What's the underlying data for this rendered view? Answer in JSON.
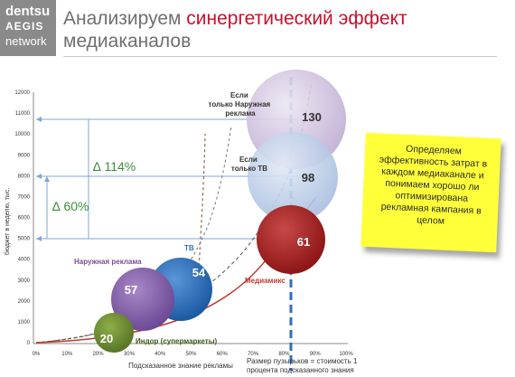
{
  "logo": {
    "line1": "dentsu",
    "line2": "AEGIS",
    "line3": "network"
  },
  "title": {
    "part1": "Анализируем ",
    "highlight": "синергетический эффект",
    "line2": "медиаканалов"
  },
  "axes": {
    "ylabel": "бюджет в неделю, тыс.",
    "xlabel": "Подсказанное знание рекламы",
    "yticks": [
      "0",
      "1000",
      "2000",
      "3000",
      "4000",
      "5000",
      "6000",
      "7000",
      "8000",
      "9000",
      "10000",
      "11000",
      "12000"
    ],
    "xticks": [
      "0%",
      "10%",
      "20%",
      "30%",
      "40%",
      "50%",
      "60%",
      "70%",
      "80%",
      "90%",
      "100%"
    ]
  },
  "annotations": {
    "delta114": "∆ 114%",
    "delta60": "∆ 60%",
    "outdoor_only": [
      "Если",
      "только Наружная",
      "реклама"
    ],
    "tv_only": [
      "Если",
      "только ТВ"
    ],
    "outdoor": "Наружная реклама",
    "tv": "ТВ",
    "mediamix": "Медиамикс",
    "indoor": "Индор (супермаркеты)"
  },
  "bubbles": [
    {
      "label": "130",
      "color": "#cbbddc"
    },
    {
      "label": "98",
      "color": "#b7c9e6"
    },
    {
      "label": "61",
      "color": "#a82222"
    },
    {
      "label": "54",
      "color": "#2a6fbd"
    },
    {
      "label": "57",
      "color": "#8a62b0"
    },
    {
      "label": "20",
      "color": "#6b8a2e"
    }
  ],
  "note": "Определяем эффективность затрат в каждом медиаканале и понимаем хорошо ли оптимизирована рекламная кампания в целом",
  "caption": "Размер пузырьков = стоимость 1 процента подсказанного знания"
}
